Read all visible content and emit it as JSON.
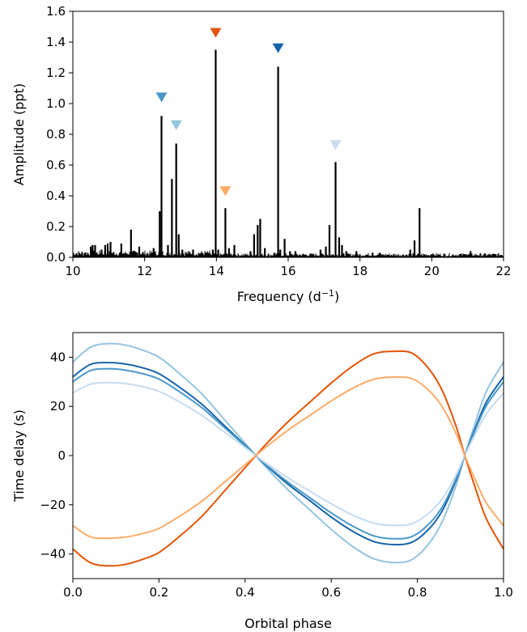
{
  "chart_data": [
    {
      "type": "line",
      "subtype": "amplitude-spectrum",
      "title": "",
      "xlabel": "Frequency (d",
      "xlabel_sup": "−1",
      "xlabel_close": ")",
      "ylabel": "Amplitude (ppt)",
      "xlim": [
        10,
        22
      ],
      "ylim": [
        0,
        1.6
      ],
      "xticks": [
        10,
        12,
        14,
        16,
        18,
        20,
        22
      ],
      "xtick_labels": [
        "10",
        "12",
        "14",
        "16",
        "18",
        "20",
        "22"
      ],
      "yticks": [
        0.0,
        0.2,
        0.4,
        0.6,
        0.8,
        1.0,
        1.2,
        1.4,
        1.6
      ],
      "ytick_labels": [
        "0.0",
        "0.2",
        "0.4",
        "0.6",
        "0.8",
        "1.0",
        "1.2",
        "1.4",
        "1.6"
      ],
      "grid": false,
      "line_color": "#000000",
      "peaks": [
        {
          "f": 10.35,
          "a": 0.03
        },
        {
          "f": 10.5,
          "a": 0.07
        },
        {
          "f": 10.55,
          "a": 0.08
        },
        {
          "f": 10.62,
          "a": 0.08
        },
        {
          "f": 10.8,
          "a": 0.05
        },
        {
          "f": 10.9,
          "a": 0.08
        },
        {
          "f": 10.97,
          "a": 0.09
        },
        {
          "f": 11.05,
          "a": 0.1
        },
        {
          "f": 11.35,
          "a": 0.09
        },
        {
          "f": 11.62,
          "a": 0.18
        },
        {
          "f": 11.85,
          "a": 0.07
        },
        {
          "f": 12.0,
          "a": 0.02
        },
        {
          "f": 12.25,
          "a": 0.06
        },
        {
          "f": 12.42,
          "a": 0.3
        },
        {
          "f": 12.47,
          "a": 0.92
        },
        {
          "f": 12.65,
          "a": 0.08
        },
        {
          "f": 12.76,
          "a": 0.51
        },
        {
          "f": 12.88,
          "a": 0.74
        },
        {
          "f": 12.95,
          "a": 0.15
        },
        {
          "f": 13.05,
          "a": 0.05
        },
        {
          "f": 13.35,
          "a": 0.05
        },
        {
          "f": 13.6,
          "a": 0.03
        },
        {
          "f": 13.9,
          "a": 0.05
        },
        {
          "f": 13.98,
          "a": 1.35
        },
        {
          "f": 14.05,
          "a": 0.05
        },
        {
          "f": 14.25,
          "a": 0.32
        },
        {
          "f": 14.35,
          "a": 0.06
        },
        {
          "f": 14.5,
          "a": 0.08
        },
        {
          "f": 14.95,
          "a": 0.04
        },
        {
          "f": 15.05,
          "a": 0.15
        },
        {
          "f": 15.15,
          "a": 0.21
        },
        {
          "f": 15.22,
          "a": 0.25
        },
        {
          "f": 15.35,
          "a": 0.06
        },
        {
          "f": 15.62,
          "a": 0.03
        },
        {
          "f": 15.72,
          "a": 1.24
        },
        {
          "f": 15.78,
          "a": 0.05
        },
        {
          "f": 15.9,
          "a": 0.12
        },
        {
          "f": 16.05,
          "a": 0.04
        },
        {
          "f": 16.2,
          "a": 0.04
        },
        {
          "f": 16.7,
          "a": 0.02
        },
        {
          "f": 16.9,
          "a": 0.05
        },
        {
          "f": 17.05,
          "a": 0.07
        },
        {
          "f": 17.15,
          "a": 0.21
        },
        {
          "f": 17.32,
          "a": 0.62
        },
        {
          "f": 17.42,
          "a": 0.13
        },
        {
          "f": 17.5,
          "a": 0.08
        },
        {
          "f": 17.62,
          "a": 0.04
        },
        {
          "f": 17.9,
          "a": 0.04
        },
        {
          "f": 18.35,
          "a": 0.03
        },
        {
          "f": 18.55,
          "a": 0.03
        },
        {
          "f": 19.4,
          "a": 0.05
        },
        {
          "f": 19.52,
          "a": 0.11
        },
        {
          "f": 19.66,
          "a": 0.32
        },
        {
          "f": 20.0,
          "a": 0.02
        },
        {
          "f": 20.95,
          "a": 0.02
        },
        {
          "f": 21.08,
          "a": 0.04
        }
      ],
      "markers": [
        {
          "f": 12.47,
          "a": 1.04,
          "color": "#4a98c9"
        },
        {
          "f": 12.88,
          "a": 0.86,
          "color": "#94c4df"
        },
        {
          "f": 13.98,
          "a": 1.46,
          "color": "#e25508"
        },
        {
          "f": 14.25,
          "a": 0.43,
          "color": "#fdab67"
        },
        {
          "f": 15.72,
          "a": 1.36,
          "color": "#1764ab"
        },
        {
          "f": 17.32,
          "a": 0.73,
          "color": "#c6dbef"
        }
      ]
    },
    {
      "type": "line",
      "subtype": "time-delay-curves",
      "title": "",
      "xlabel": "Orbital phase",
      "ylabel": "Time delay (s)",
      "xlim": [
        0.0,
        1.0
      ],
      "ylim": [
        -50,
        50
      ],
      "xticks": [
        0.0,
        0.2,
        0.4,
        0.6,
        0.8,
        1.0
      ],
      "xtick_labels": [
        "0.0",
        "0.2",
        "0.4",
        "0.6",
        "0.8",
        "1.0"
      ],
      "yticks": [
        -40,
        -20,
        0,
        20,
        40
      ],
      "ytick_labels": [
        "−40",
        "−20",
        "0",
        "20",
        "40"
      ],
      "grid": false,
      "series": [
        {
          "color": "#94c4df",
          "x": [
            0.0,
            0.04,
            0.08,
            0.12,
            0.16,
            0.2,
            0.25,
            0.3,
            0.35,
            0.4,
            0.425,
            0.45,
            0.5,
            0.55,
            0.6,
            0.65,
            0.7,
            0.75,
            0.79,
            0.83,
            0.86,
            0.89,
            0.91,
            0.93,
            0.96,
            1.0
          ],
          "y": [
            38,
            44,
            45.5,
            45,
            43,
            40,
            33,
            25,
            15,
            5,
            0,
            -5,
            -14,
            -22,
            -30,
            -37,
            -42,
            -43.5,
            -42,
            -35,
            -26,
            -12,
            0,
            11,
            26,
            38
          ]
        },
        {
          "color": "#1764ab",
          "x": [
            0.0,
            0.04,
            0.08,
            0.12,
            0.16,
            0.2,
            0.25,
            0.3,
            0.35,
            0.4,
            0.425,
            0.45,
            0.5,
            0.55,
            0.6,
            0.65,
            0.7,
            0.75,
            0.79,
            0.83,
            0.86,
            0.89,
            0.91,
            0.93,
            0.96,
            1.0
          ],
          "y": [
            32,
            37,
            37.8,
            37.3,
            35.8,
            33.3,
            27.5,
            20.8,
            12.5,
            4.2,
            0,
            -4.2,
            -11.7,
            -18.3,
            -25,
            -30.8,
            -35,
            -36.2,
            -35,
            -29.2,
            -21.7,
            -10,
            0,
            9.2,
            21.7,
            32
          ]
        },
        {
          "color": "#4a98c9",
          "x": [
            0.0,
            0.04,
            0.08,
            0.12,
            0.16,
            0.2,
            0.25,
            0.3,
            0.35,
            0.4,
            0.425,
            0.45,
            0.5,
            0.55,
            0.6,
            0.65,
            0.7,
            0.75,
            0.79,
            0.83,
            0.86,
            0.89,
            0.91,
            0.93,
            0.96,
            1.0
          ],
          "y": [
            30,
            34.5,
            35.3,
            34.8,
            33.4,
            31.1,
            25.7,
            19.4,
            11.7,
            3.9,
            0,
            -3.9,
            -10.9,
            -17.1,
            -23.3,
            -28.7,
            -32.7,
            -33.8,
            -32.7,
            -27.2,
            -20.2,
            -9.3,
            0,
            8.6,
            20.2,
            30
          ]
        },
        {
          "color": "#c6dbef",
          "x": [
            0.0,
            0.04,
            0.08,
            0.12,
            0.16,
            0.2,
            0.25,
            0.3,
            0.35,
            0.4,
            0.425,
            0.45,
            0.5,
            0.55,
            0.6,
            0.65,
            0.7,
            0.75,
            0.79,
            0.83,
            0.86,
            0.89,
            0.91,
            0.93,
            0.96,
            1.0
          ],
          "y": [
            25.5,
            29,
            29.7,
            29.3,
            28.1,
            26.1,
            21.6,
            16.3,
            9.8,
            3.3,
            0,
            -3.3,
            -9.1,
            -14.4,
            -19.6,
            -24.2,
            -27.5,
            -28.4,
            -27.5,
            -22.9,
            -17,
            -7.8,
            0,
            7.2,
            17,
            25.5
          ]
        },
        {
          "color": "#e25508",
          "x": [
            0.0,
            0.04,
            0.08,
            0.12,
            0.16,
            0.2,
            0.25,
            0.3,
            0.35,
            0.4,
            0.425,
            0.45,
            0.5,
            0.55,
            0.6,
            0.65,
            0.7,
            0.75,
            0.79,
            0.83,
            0.86,
            0.89,
            0.91,
            0.93,
            0.96,
            1.0
          ],
          "y": [
            -38,
            -43.5,
            -44.8,
            -44.3,
            -42.3,
            -39.4,
            -32.5,
            -24.6,
            -14.8,
            -4.9,
            0,
            4.9,
            13.8,
            21.7,
            29.5,
            36.4,
            41.4,
            42.4,
            41.4,
            34.5,
            25.6,
            11.8,
            0,
            -10.8,
            -25.6,
            -38
          ]
        },
        {
          "color": "#fdab67",
          "x": [
            0.0,
            0.04,
            0.08,
            0.12,
            0.16,
            0.2,
            0.25,
            0.3,
            0.35,
            0.4,
            0.425,
            0.45,
            0.5,
            0.55,
            0.6,
            0.65,
            0.7,
            0.75,
            0.79,
            0.83,
            0.86,
            0.89,
            0.91,
            0.93,
            0.96,
            1.0
          ],
          "y": [
            -28.5,
            -33,
            -33.6,
            -33.2,
            -31.8,
            -29.6,
            -24.4,
            -18.5,
            -11.1,
            -3.7,
            0,
            3.7,
            10.4,
            16.3,
            22.2,
            27.4,
            31.1,
            31.9,
            31.1,
            25.9,
            19.2,
            8.9,
            0,
            -8.1,
            -19.2,
            -28.5
          ]
        }
      ]
    }
  ]
}
